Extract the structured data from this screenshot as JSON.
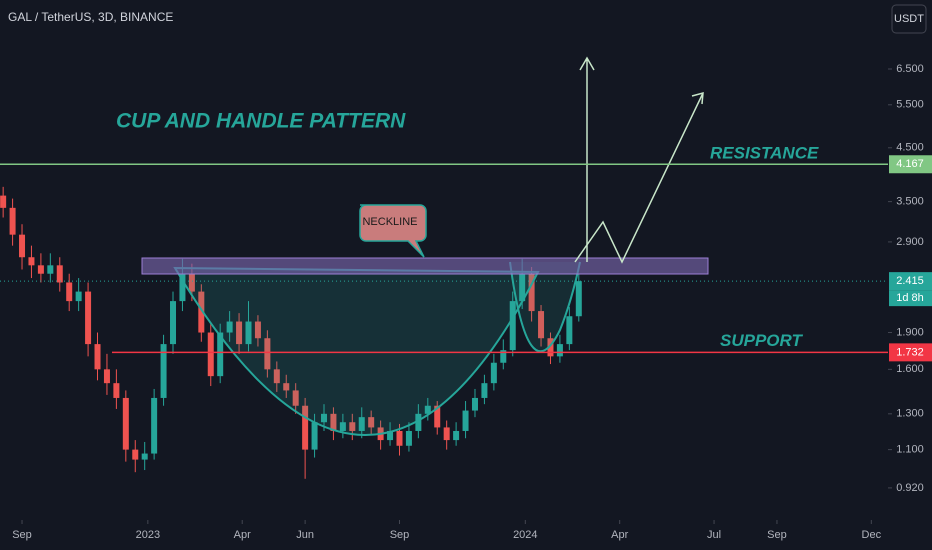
{
  "chart_data": {
    "type": "candlestick",
    "title": "GAL / TetherUS, 3D, BINANCE",
    "currency": "USDT",
    "log_scale": true,
    "grid": false,
    "up_color": "#26a69a",
    "down_color": "#ef5350",
    "x": [
      -0.6,
      -0.3,
      0,
      0.3,
      0.6,
      0.9,
      1.2,
      1.5,
      1.8,
      2.1,
      2.4,
      2.7,
      3,
      3.3,
      3.6,
      3.9,
      4.2,
      4.5,
      4.8,
      5.1,
      5.4,
      5.7,
      6,
      6.3,
      6.6,
      6.9,
      7.2,
      7.5,
      7.8,
      8.1,
      8.4,
      8.7,
      9,
      9.3,
      9.6,
      9.9,
      10.2,
      10.5,
      10.8,
      11.1,
      11.4,
      11.7,
      12,
      12.3,
      12.6,
      12.9,
      13.2,
      13.5,
      13.8,
      14.1,
      14.4,
      14.7,
      15,
      15.3,
      15.6,
      15.9,
      16.2,
      16.5,
      16.8,
      17.1,
      17.4,
      17.7
    ],
    "open": [
      3.6,
      3.4,
      3.0,
      2.7,
      2.6,
      2.5,
      2.6,
      2.4,
      2.2,
      2.3,
      1.8,
      1.6,
      1.5,
      1.4,
      1.1,
      1.05,
      1.08,
      1.4,
      1.8,
      2.2,
      2.5,
      2.3,
      1.9,
      1.55,
      1.9,
      2.0,
      1.8,
      2.0,
      1.85,
      1.6,
      1.5,
      1.45,
      1.35,
      1.1,
      1.25,
      1.3,
      1.2,
      1.25,
      1.2,
      1.28,
      1.22,
      1.15,
      1.2,
      1.12,
      1.2,
      1.3,
      1.35,
      1.22,
      1.15,
      1.2,
      1.32,
      1.4,
      1.5,
      1.65,
      1.75,
      2.2,
      2.5,
      2.1,
      1.85,
      1.7,
      1.8,
      2.05
    ],
    "high": [
      3.75,
      3.55,
      3.15,
      2.85,
      2.75,
      2.75,
      2.7,
      2.5,
      2.45,
      2.4,
      1.9,
      1.72,
      1.6,
      1.45,
      1.15,
      1.14,
      1.46,
      1.88,
      2.3,
      2.68,
      2.62,
      2.38,
      1.98,
      1.98,
      2.1,
      2.08,
      2.2,
      2.06,
      1.92,
      1.66,
      1.56,
      1.5,
      1.4,
      1.3,
      1.36,
      1.34,
      1.3,
      1.3,
      1.34,
      1.32,
      1.26,
      1.25,
      1.24,
      1.25,
      1.36,
      1.4,
      1.38,
      1.26,
      1.25,
      1.38,
      1.46,
      1.56,
      1.72,
      1.84,
      2.3,
      2.68,
      2.58,
      2.16,
      1.9,
      1.88,
      2.14,
      2.5
    ],
    "low": [
      3.25,
      2.85,
      2.55,
      2.45,
      2.4,
      2.4,
      2.3,
      2.1,
      2.1,
      1.7,
      1.52,
      1.42,
      1.33,
      1.04,
      0.99,
      1.0,
      1.05,
      1.35,
      1.72,
      2.1,
      2.2,
      1.82,
      1.48,
      1.5,
      1.82,
      1.72,
      1.74,
      1.78,
      1.54,
      1.44,
      1.4,
      1.3,
      0.96,
      1.06,
      1.2,
      1.15,
      1.16,
      1.15,
      1.16,
      1.18,
      1.1,
      1.12,
      1.07,
      1.09,
      1.16,
      1.26,
      1.18,
      1.1,
      1.12,
      1.16,
      1.28,
      1.36,
      1.45,
      1.6,
      1.7,
      2.12,
      2.0,
      1.78,
      1.64,
      1.65,
      1.75,
      2.0
    ],
    "close": [
      3.4,
      3.0,
      2.7,
      2.6,
      2.5,
      2.6,
      2.4,
      2.2,
      2.3,
      1.8,
      1.6,
      1.5,
      1.4,
      1.1,
      1.05,
      1.08,
      1.4,
      1.8,
      2.2,
      2.5,
      2.3,
      1.9,
      1.55,
      1.9,
      2.0,
      1.8,
      2.0,
      1.85,
      1.6,
      1.5,
      1.45,
      1.35,
      1.1,
      1.25,
      1.3,
      1.2,
      1.25,
      1.2,
      1.28,
      1.22,
      1.15,
      1.2,
      1.12,
      1.2,
      1.3,
      1.35,
      1.22,
      1.15,
      1.2,
      1.32,
      1.4,
      1.5,
      1.65,
      1.75,
      2.2,
      2.5,
      2.1,
      1.85,
      1.7,
      1.8,
      2.05,
      2.415
    ],
    "xlim": [
      -0.7,
      27.53
    ],
    "xticks": [
      {
        "value": 0,
        "label": "Sep"
      },
      {
        "value": 4,
        "label": "2023"
      },
      {
        "value": 7,
        "label": "Apr"
      },
      {
        "value": 9,
        "label": "Jun"
      },
      {
        "value": 12,
        "label": "Sep"
      },
      {
        "value": 16,
        "label": "2024"
      },
      {
        "value": 19,
        "label": "Apr"
      },
      {
        "value": 22,
        "label": "Jul"
      },
      {
        "value": 24,
        "label": "Sep"
      },
      {
        "value": 27,
        "label": "Dec"
      }
    ],
    "ylim": [
      0.792,
      8.97
    ],
    "yticks": [
      {
        "value": 0.92,
        "label": "0.920"
      },
      {
        "value": 1.1,
        "label": "1.100"
      },
      {
        "value": 1.3,
        "label": "1.300"
      },
      {
        "value": 1.6,
        "label": "1.600"
      },
      {
        "value": 1.9,
        "label": "1.900"
      },
      {
        "value": 2.9,
        "label": "2.900"
      },
      {
        "value": 3.5,
        "label": "3.500"
      },
      {
        "value": 4.5,
        "label": "4.500"
      },
      {
        "value": 5.5,
        "label": "5.500"
      },
      {
        "value": 6.5,
        "label": "6.500"
      }
    ],
    "resistance": {
      "value": 4.167,
      "label": "RESISTANCE",
      "color": "#81c784"
    },
    "support": {
      "value": 1.732,
      "label": "SUPPORT",
      "color": "#f23645"
    },
    "last_price": {
      "value": 2.415,
      "countdown": "1d 8h",
      "color": "#26a69a"
    },
    "pattern_label": "CUP AND HANDLE PATTERN",
    "neckline_label": "NECKLINE"
  }
}
